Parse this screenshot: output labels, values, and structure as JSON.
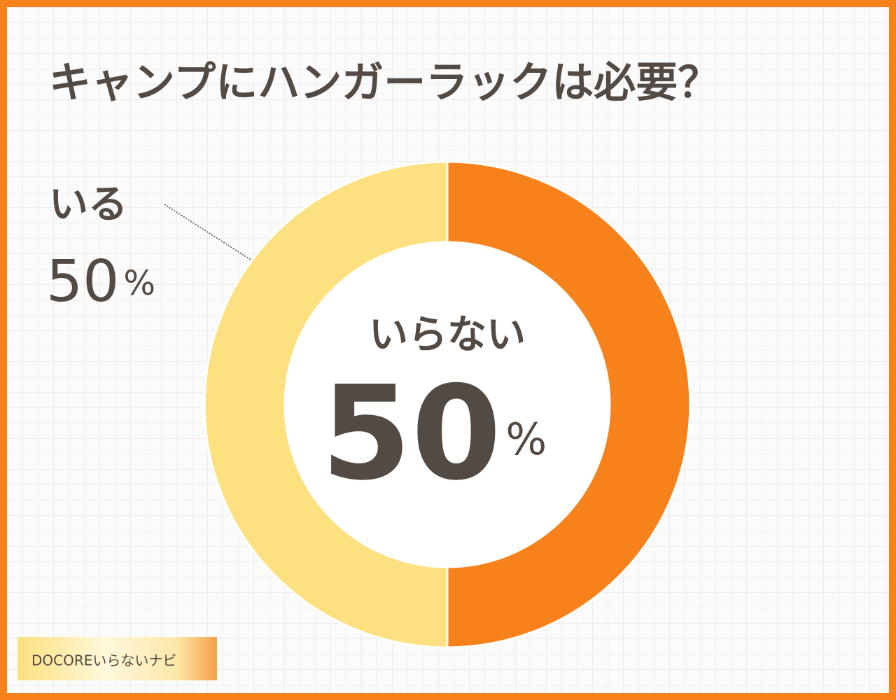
{
  "chart_data": {
    "type": "donut",
    "title": "キャンプにハンガーラックは必要？",
    "categories": [
      "いらない",
      "いる"
    ],
    "values": [
      50,
      50
    ],
    "unit": "%",
    "colors": [
      "#f7821b",
      "#fde07f"
    ]
  },
  "watermark": "DOCOREいらないナビ"
}
